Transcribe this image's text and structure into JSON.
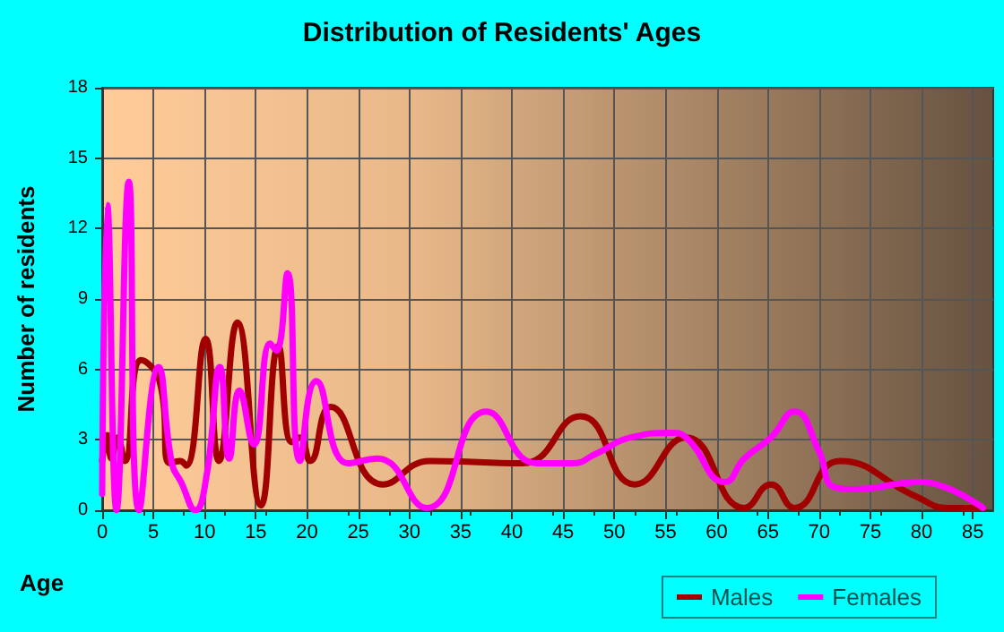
{
  "chart_data": {
    "type": "line",
    "title": "Distribution of Residents' Ages",
    "xlabel": "Age",
    "ylabel": "Number of residents",
    "xlim": [
      0,
      87
    ],
    "xticks": [
      0,
      5,
      10,
      15,
      20,
      25,
      30,
      35,
      40,
      45,
      50,
      55,
      60,
      65,
      70,
      75,
      80,
      85
    ],
    "ylim": [
      0,
      18
    ],
    "yticks": [
      0,
      3,
      6,
      9,
      12,
      15,
      18
    ],
    "grid": true,
    "legend": "bottom right",
    "marker": "none",
    "line_style": "solid",
    "series": [
      {
        "name": "Males",
        "color": "#a00000",
        "x": [
          0,
          0.5,
          0.9,
          1.5,
          2.2,
          3.8,
          5.6,
          6.6,
          7.6,
          8.2,
          10.1,
          11.4,
          13.2,
          15.5,
          17.2,
          18.5,
          19.3,
          20.3,
          22.3,
          27.4,
          32,
          41,
          46.7,
          52,
          57,
          62.7,
          65.3,
          67.6,
          72,
          79.4,
          82.6,
          86
        ],
        "values": [
          2.1,
          3.2,
          2.2,
          3.1,
          2.1,
          6.4,
          5.5,
          2,
          2.1,
          1.9,
          7.3,
          2.1,
          8,
          0.2,
          7,
          2.9,
          3.1,
          2.1,
          4.4,
          1.1,
          2.1,
          2,
          4,
          1.1,
          3.1,
          0.1,
          1.1,
          0.1,
          2.1,
          0.6,
          0.1,
          0.1
        ]
      },
      {
        "name": "Females",
        "color": "#ff00ff",
        "x": [
          0,
          0.5,
          1.4,
          2.6,
          3.6,
          5.5,
          6.8,
          7.7,
          9.1,
          10.2,
          11.5,
          12.4,
          13.4,
          14.8,
          16.4,
          17,
          18.1,
          19.3,
          20.9,
          24,
          26.9,
          31.7,
          37.5,
          42.4,
          45.9,
          48.2,
          51.6,
          55.6,
          57,
          60.8,
          62.7,
          65.3,
          67.6,
          70,
          71.4,
          73.4,
          79.8,
          81.5,
          86
        ],
        "values": [
          0.7,
          13,
          0,
          14,
          0,
          6.1,
          2,
          1.2,
          0,
          1.5,
          6.1,
          2.2,
          5.1,
          2.8,
          7.1,
          6.8,
          10.1,
          2.1,
          5.5,
          2,
          2.2,
          0.1,
          4.2,
          2,
          2,
          2.4,
          3.1,
          3.3,
          3.1,
          1.2,
          2.2,
          3.1,
          4.2,
          2.5,
          1,
          0.9,
          1.2,
          1.1,
          0.1
        ]
      }
    ]
  }
}
